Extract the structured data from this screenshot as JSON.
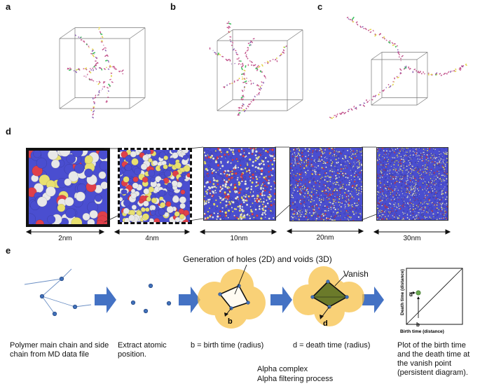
{
  "panels": {
    "a": "a",
    "b": "b",
    "c": "c",
    "d": "d",
    "e": "e"
  },
  "scales": [
    "2nm",
    "4nm",
    "10nm",
    "20nm",
    "30nm"
  ],
  "e": {
    "generation_title": "Generation of holes (2D) and voids (3D)",
    "vanish": "Vanish",
    "b_letter": "b",
    "d_letter": "d",
    "pd_ylabel": "Death time (distance)",
    "pd_xlabel": "Birth time (distance)",
    "pd_d": "d",
    "pd_b": "b",
    "captions": {
      "c1": "Polymer main chain and side chain from MD data file",
      "c2": "Extract atomic position.",
      "c3": "b = birth time (radius)",
      "c4": "d = death time (radius)",
      "c5": "Alpha complex",
      "c6": "Alpha filtering process",
      "c7": "Plot of the birth time and the death time at the vanish point (persistent diagram)."
    }
  },
  "colors": {
    "arrow_blue": "#4472c4",
    "hole_fill": "#f7c24a",
    "void_fill": "#6b7a2a",
    "node_blue": "#3f6fb8",
    "atom_blue": "#4a4ed0",
    "atom_white": "#e8e8e8",
    "atom_red": "#e0404a",
    "atom_yellow": "#e8e070"
  }
}
